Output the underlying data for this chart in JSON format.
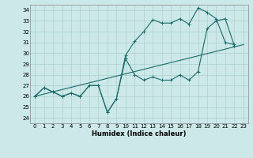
{
  "xlabel": "Humidex (Indice chaleur)",
  "background_color": "#cce8e8",
  "grid_color": "#aacfcf",
  "line_color": "#1a6b6b",
  "xlim": [
    -0.5,
    23.5
  ],
  "ylim": [
    23.5,
    34.5
  ],
  "xticks": [
    0,
    1,
    2,
    3,
    4,
    5,
    6,
    7,
    8,
    9,
    10,
    11,
    12,
    13,
    14,
    15,
    16,
    17,
    18,
    19,
    20,
    21,
    22,
    23
  ],
  "yticks": [
    24,
    25,
    26,
    27,
    28,
    29,
    30,
    31,
    32,
    33,
    34
  ],
  "series1": {
    "x": [
      0,
      1,
      2,
      3,
      4,
      5,
      6,
      7,
      8,
      9,
      10,
      11,
      12,
      13,
      14,
      15,
      16,
      17,
      18,
      19,
      20,
      21,
      22
    ],
    "y": [
      26.0,
      26.8,
      26.4,
      26.0,
      26.3,
      26.0,
      27.0,
      27.0,
      24.5,
      25.8,
      29.8,
      31.1,
      32.0,
      33.1,
      32.8,
      32.8,
      33.2,
      32.7,
      34.2,
      33.8,
      33.2,
      31.0,
      30.8
    ]
  },
  "series2": {
    "x": [
      0,
      1,
      2,
      3,
      4,
      5,
      6,
      7,
      8,
      9,
      10,
      11,
      12,
      13,
      14,
      15,
      16,
      17,
      18,
      19,
      20,
      21,
      22
    ],
    "y": [
      26.0,
      26.8,
      26.4,
      26.0,
      26.3,
      26.0,
      27.0,
      27.0,
      24.5,
      25.8,
      29.5,
      28.0,
      27.5,
      27.8,
      27.5,
      27.5,
      28.0,
      27.5,
      28.3,
      32.3,
      33.0,
      33.2,
      30.7
    ]
  },
  "series3": {
    "x": [
      0,
      23
    ],
    "y": [
      26.0,
      30.8
    ]
  }
}
